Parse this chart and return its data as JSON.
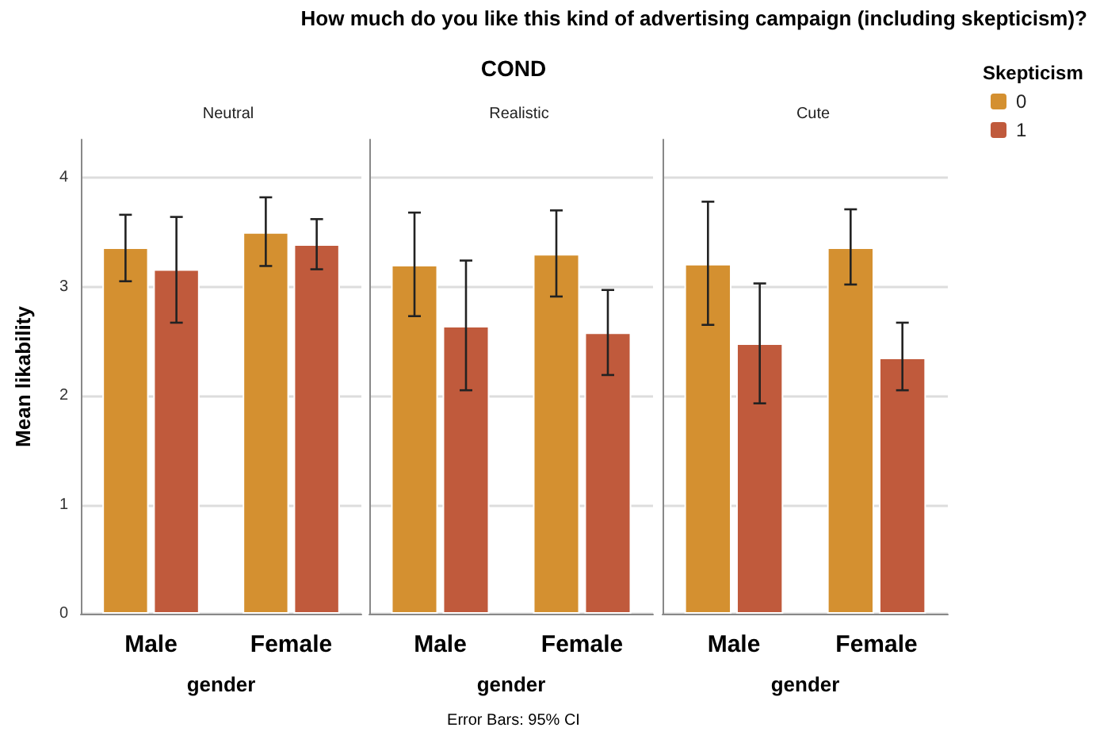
{
  "chart_data": [
    {
      "type": "bar",
      "title": "Neutral",
      "xlabel": "gender",
      "ylabel": "Mean likability",
      "categories": [
        "Male",
        "Female"
      ],
      "series": [
        {
          "color": "#d49030",
          "values": [
            3.36,
            3.5
          ],
          "errors": [
            [
              3.05,
              3.66
            ],
            [
              3.19,
              3.82
            ]
          ]
        },
        {
          "color": "#c05a3c",
          "values": [
            3.16,
            3.39
          ],
          "errors": [
            [
              2.67,
              3.64
            ],
            [
              3.16,
              3.62
            ]
          ]
        }
      ],
      "ylim": [
        0,
        4.35
      ],
      "yticks": [
        0,
        1,
        2,
        3,
        4
      ],
      "grid": "y",
      "legend": false,
      "annotations": [
        "How much do you like this kind of advertising campaign (including skepticism)?",
        "COND",
        "Error Bars: 95% CI"
      ]
    },
    {
      "type": "bar",
      "title": "Realistic",
      "xlabel": "gender",
      "categories": [
        "Male",
        "Female"
      ],
      "series": [
        {
          "color": "#d49030",
          "values": [
            3.2,
            3.3
          ],
          "errors": [
            [
              2.73,
              3.68
            ],
            [
              2.91,
              3.7
            ]
          ]
        },
        {
          "color": "#c05a3c",
          "values": [
            2.64,
            2.58
          ],
          "errors": [
            [
              2.05,
              3.24
            ],
            [
              2.19,
              2.97
            ]
          ]
        }
      ],
      "ylim": [
        0,
        4.35
      ],
      "yticks": [
        0,
        1,
        2,
        3,
        4
      ],
      "grid": "y",
      "legend": false,
      "tick_labels": "x"
    },
    {
      "type": "bar",
      "title": "Cute",
      "xlabel": "gender",
      "categories": [
        "Male",
        "Female"
      ],
      "legend_title": "Skepticism",
      "series": [
        {
          "name": "0",
          "color": "#d49030",
          "values": [
            3.21,
            3.36
          ],
          "errors": [
            [
              2.65,
              3.78
            ],
            [
              3.02,
              3.71
            ]
          ]
        },
        {
          "name": "1",
          "color": "#c05a3c",
          "values": [
            2.48,
            2.35
          ],
          "errors": [
            [
              1.93,
              3.03
            ],
            [
              2.05,
              2.67
            ]
          ]
        }
      ],
      "ylim": [
        0,
        4.35
      ],
      "yticks": [
        0,
        1,
        2,
        3,
        4
      ],
      "grid": "y",
      "legend": "right",
      "tick_labels": "x"
    }
  ]
}
